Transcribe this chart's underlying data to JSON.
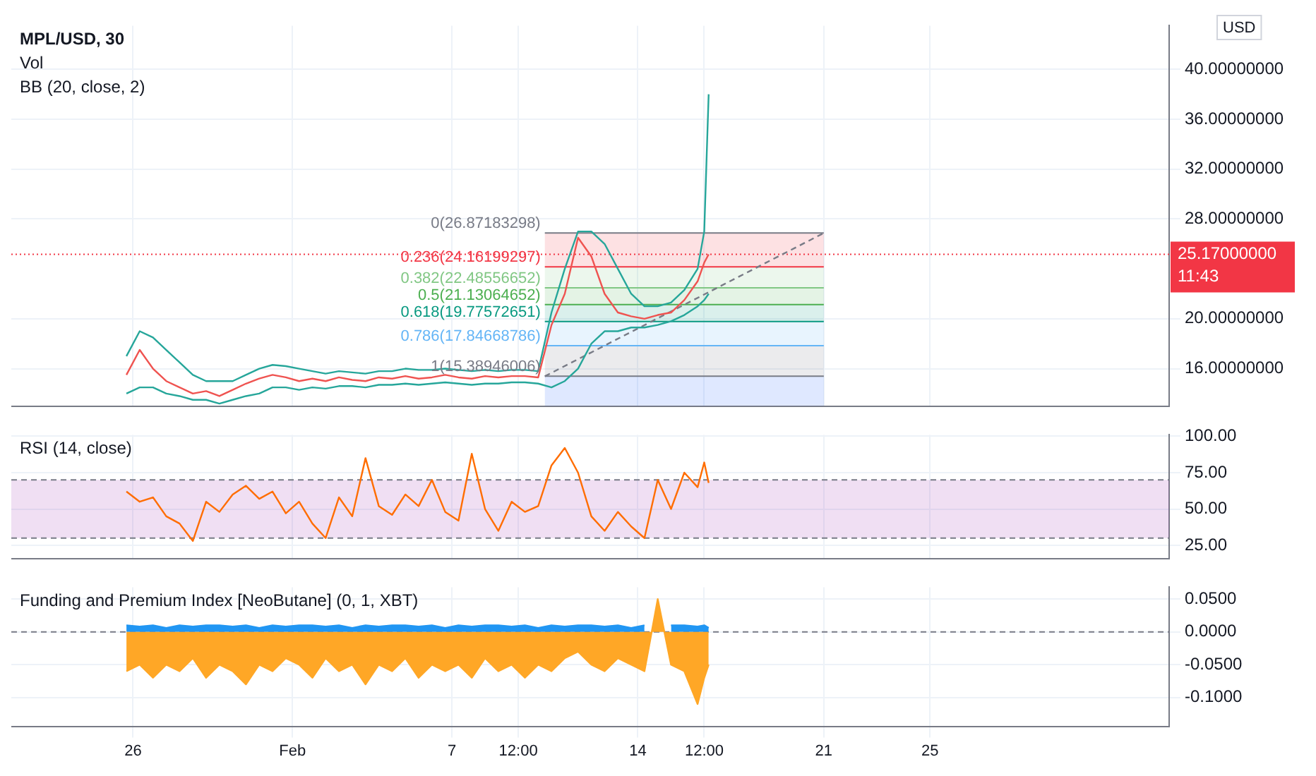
{
  "chart_data": [
    {
      "type": "line",
      "title": "MPL/USD, 30",
      "ylabel": "USD",
      "annotations": [
        "Vol",
        "BB (20, close, 2)"
      ],
      "tick_labels": "y",
      "grid": true,
      "marker": "none",
      "x": [
        "--01-25T18:00",
        "--01-26T06:00",
        "--01-26T18:00",
        "--01-27T06:00",
        "--01-27T18:00",
        "--01-28T06:00",
        "--01-28T18:00",
        "--01-29T06:00",
        "--01-29T18:00",
        "--01-30T06:00",
        "--01-30T18:00",
        "--01-31T06:00",
        "--01-31T18:00",
        "--02-01T06:00",
        "--02-01T18:00",
        "--02-02T06:00",
        "--02-02T18:00",
        "--02-03T06:00",
        "--02-03T18:00",
        "--02-04T06:00",
        "--02-04T18:00",
        "--02-05T06:00",
        "--02-05T18:00",
        "--02-06T06:00",
        "--02-06T18:00",
        "--02-07T06:00",
        "--02-07T18:00",
        "--02-08T06:00",
        "--02-08T18:00",
        "--02-09T06:00",
        "--02-09T18:00",
        "--02-10T06:00",
        "--02-10T18:00",
        "--02-11T06:00",
        "--02-11T18:00",
        "--02-12T06:00",
        "--02-12T18:00",
        "--02-13T06:00",
        "--02-13T18:00",
        "--02-14T06:00",
        "--02-14T18:00",
        "--02-15T06:00",
        "--02-15T18:00",
        "--02-16T06:00",
        "--02-16T12:00",
        "--02-16T16:00"
      ],
      "series": [
        {
          "color": "#ef5350",
          "values": [
            15.5,
            17.5,
            16.0,
            15.0,
            14.5,
            14.0,
            14.2,
            13.8,
            14.3,
            14.8,
            15.2,
            15.5,
            15.3,
            15.0,
            15.2,
            15.0,
            15.3,
            15.1,
            15.0,
            15.3,
            15.2,
            15.4,
            15.2,
            15.3,
            15.5,
            15.3,
            15.2,
            15.4,
            15.3,
            15.4,
            15.4,
            15.3,
            19.5,
            22.0,
            26.5,
            25.0,
            22.0,
            20.5,
            20.2,
            20.0,
            20.3,
            20.5,
            21.5,
            23.0,
            24.5,
            25.17
          ]
        },
        {
          "color": "#26a69a",
          "values": [
            14.0,
            14.5,
            14.5,
            14.0,
            13.8,
            13.5,
            13.5,
            13.2,
            13.5,
            13.8,
            14.0,
            14.5,
            14.5,
            14.3,
            14.5,
            14.4,
            14.6,
            14.6,
            14.5,
            14.7,
            14.7,
            14.8,
            14.7,
            14.8,
            14.9,
            14.8,
            14.7,
            14.8,
            14.8,
            14.9,
            14.9,
            14.8,
            14.5,
            15.0,
            16.0,
            18.0,
            19.0,
            19.0,
            19.3,
            19.3,
            19.5,
            19.8,
            20.3,
            21.0,
            21.5,
            22.0
          ]
        },
        {
          "color": "#26a69a",
          "values": [
            17.0,
            19.0,
            18.5,
            17.5,
            16.5,
            15.5,
            15.0,
            15.0,
            15.0,
            15.5,
            16.0,
            16.3,
            16.2,
            16.0,
            15.8,
            15.6,
            15.8,
            15.7,
            15.6,
            15.8,
            15.8,
            16.0,
            15.9,
            15.9,
            16.0,
            15.9,
            15.8,
            15.9,
            15.8,
            15.9,
            15.9,
            15.8,
            20.5,
            24.0,
            27.0,
            27.0,
            26.0,
            24.0,
            22.0,
            21.0,
            21.0,
            21.3,
            22.3,
            24.0,
            27.0,
            38.0
          ]
        },
        {
          "type": "line",
          "color": "#787b86",
          "line_style": "dashed",
          "x": [
            "--02-10T12:00",
            "--02-21"
          ],
          "values": [
            15.39,
            26.87
          ]
        }
      ],
      "ylim": [
        13.0,
        43.5
      ],
      "yticks": [
        {
          "value": 16,
          "label": "16.00000000"
        },
        {
          "value": 20,
          "label": "20.00000000"
        },
        {
          "value": 28,
          "label": "28.00000000"
        },
        {
          "value": 32,
          "label": "32.00000000"
        },
        {
          "value": 36,
          "label": "36.00000000"
        },
        {
          "value": 40,
          "label": "40.00000000"
        }
      ],
      "xlim": [
        "--01-21T10:00",
        "--03-06"
      ],
      "xticks": [
        {
          "value": "--01-26",
          "label": "26"
        },
        {
          "value": "--02-01",
          "label": "Feb"
        },
        {
          "value": "--02-07",
          "label": "7"
        },
        {
          "value": "--02-09T12:00",
          "label": "12:00"
        },
        {
          "value": "--02-14",
          "label": "14"
        },
        {
          "value": "--02-16T12:00",
          "label": "12:00"
        },
        {
          "value": "--02-21",
          "label": "21"
        },
        {
          "value": "--02-25",
          "label": "25"
        }
      ],
      "ref_lines": [
        {
          "axis": "y",
          "value": 26.87183298,
          "label": "0(26.87183298)",
          "color": "#787b86"
        },
        {
          "axis": "y",
          "value": 24.16199297,
          "label": "0.236(24.16199297)",
          "color": "#f23645"
        },
        {
          "axis": "y",
          "value": 22.48556652,
          "label": "0.382(22.48556652)",
          "color": "#81c784"
        },
        {
          "axis": "y",
          "value": 21.13064652,
          "label": "0.5(21.13064652)",
          "color": "#4caf50"
        },
        {
          "axis": "y",
          "value": 19.77572651,
          "label": "0.618(19.77572651)",
          "color": "#089981"
        },
        {
          "axis": "y",
          "value": 17.84668786,
          "label": "0.786(17.84668786)",
          "color": "#64b5f6"
        },
        {
          "axis": "y",
          "value": 15.38946006,
          "label": "1(15.38946006)",
          "color": "#787b86"
        },
        {
          "axis": "y",
          "value": 25.17,
          "label": "25.17000000\n11:43",
          "color": "#f23645",
          "line_style": "dotted"
        }
      ],
      "bands": [
        {
          "axis": "y",
          "from": 24.16199297,
          "to": 26.87183298,
          "color": "#f23645"
        },
        {
          "axis": "y",
          "from": 22.48556652,
          "to": 24.16199297,
          "color": "#81c784"
        },
        {
          "axis": "y",
          "from": 21.13064652,
          "to": 22.48556652,
          "color": "#4caf50"
        },
        {
          "axis": "y",
          "from": 19.77572651,
          "to": 21.13064652,
          "color": "#089981"
        },
        {
          "axis": "y",
          "from": 17.84668786,
          "to": 19.77572651,
          "color": "#64b5f6"
        },
        {
          "axis": "y",
          "from": 15.38946006,
          "to": 17.84668786,
          "color": "#787b86"
        },
        {
          "axis": "y",
          "from": 13.0,
          "to": 15.38946006,
          "color": "#2962ff"
        }
      ]
    },
    {
      "type": "line",
      "annotations": [
        "RSI (14, close)"
      ],
      "tick_labels": "y",
      "grid": true,
      "marker": "none",
      "x": [
        "--01-25T18:00",
        "--01-26T06:00",
        "--01-26T18:00",
        "--01-27T06:00",
        "--01-27T18:00",
        "--01-28T06:00",
        "--01-28T18:00",
        "--01-29T06:00",
        "--01-29T18:00",
        "--01-30T06:00",
        "--01-30T18:00",
        "--01-31T06:00",
        "--01-31T18:00",
        "--02-01T06:00",
        "--02-01T18:00",
        "--02-02T06:00",
        "--02-02T18:00",
        "--02-03T06:00",
        "--02-03T18:00",
        "--02-04T06:00",
        "--02-04T18:00",
        "--02-05T06:00",
        "--02-05T18:00",
        "--02-06T06:00",
        "--02-06T18:00",
        "--02-07T06:00",
        "--02-07T18:00",
        "--02-08T06:00",
        "--02-08T18:00",
        "--02-09T06:00",
        "--02-09T18:00",
        "--02-10T06:00",
        "--02-10T18:00",
        "--02-11T06:00",
        "--02-11T18:00",
        "--02-12T06:00",
        "--02-12T18:00",
        "--02-13T06:00",
        "--02-13T18:00",
        "--02-14T06:00",
        "--02-14T18:00",
        "--02-15T06:00",
        "--02-15T18:00",
        "--02-16T06:00",
        "--02-16T12:00",
        "--02-16T16:00"
      ],
      "series": [
        {
          "color": "#ff6d00",
          "values": [
            62,
            55,
            58,
            45,
            40,
            28,
            55,
            48,
            60,
            66,
            57,
            62,
            47,
            55,
            40,
            30,
            58,
            45,
            85,
            52,
            46,
            60,
            52,
            70,
            48,
            42,
            88,
            50,
            35,
            55,
            48,
            52,
            80,
            92,
            75,
            45,
            35,
            48,
            38,
            30,
            70,
            50,
            75,
            65,
            82,
            68
          ]
        }
      ],
      "ylim": [
        16,
        101
      ],
      "yticks": [
        {
          "value": 25,
          "label": "25.00"
        },
        {
          "value": 50,
          "label": "50.00"
        },
        {
          "value": 75,
          "label": "75.00"
        },
        {
          "value": 100,
          "label": "100.00"
        }
      ],
      "xlim": [
        "--01-21T10:00",
        "--03-06"
      ],
      "xticks": [
        {
          "value": "--01-26",
          "label": "26"
        },
        {
          "value": "--02-01",
          "label": "Feb"
        },
        {
          "value": "--02-07",
          "label": "7"
        },
        {
          "value": "--02-09T12:00",
          "label": "12:00"
        },
        {
          "value": "--02-14",
          "label": "14"
        },
        {
          "value": "--02-16T12:00",
          "label": "12:00"
        },
        {
          "value": "--02-21",
          "label": "21"
        },
        {
          "value": "--02-25",
          "label": "25"
        }
      ],
      "ref_lines": [
        {
          "axis": "y",
          "value": 70,
          "color": "#787b86",
          "line_style": "dashed"
        },
        {
          "axis": "y",
          "value": 30,
          "color": "#787b86",
          "line_style": "dashed"
        }
      ],
      "bands": [
        {
          "axis": "y",
          "from": 30,
          "to": 70,
          "color": "#9c27b0"
        }
      ]
    },
    {
      "type": "area",
      "annotations": [
        "Funding and Premium Index [NeoButane] (0, 1, XBT)"
      ],
      "grid": true,
      "marker": "none",
      "x": [
        "--01-25T18:00",
        "--01-26T06:00",
        "--01-26T18:00",
        "--01-27T06:00",
        "--01-27T18:00",
        "--01-28T06:00",
        "--01-28T18:00",
        "--01-29T06:00",
        "--01-29T18:00",
        "--01-30T06:00",
        "--01-30T18:00",
        "--01-31T06:00",
        "--01-31T18:00",
        "--02-01T06:00",
        "--02-01T18:00",
        "--02-02T06:00",
        "--02-02T18:00",
        "--02-03T06:00",
        "--02-03T18:00",
        "--02-04T06:00",
        "--02-04T18:00",
        "--02-05T06:00",
        "--02-05T18:00",
        "--02-06T06:00",
        "--02-06T18:00",
        "--02-07T06:00",
        "--02-07T18:00",
        "--02-08T06:00",
        "--02-08T18:00",
        "--02-09T06:00",
        "--02-09T18:00",
        "--02-10T06:00",
        "--02-10T18:00",
        "--02-11T06:00",
        "--02-11T18:00",
        "--02-12T06:00",
        "--02-12T18:00",
        "--02-13T06:00",
        "--02-13T18:00",
        "--02-14T06:00",
        "--02-14T18:00",
        "--02-15T06:00",
        "--02-15T18:00",
        "--02-16T06:00",
        "--02-16T12:00",
        "--02-16T16:00"
      ],
      "series": [
        {
          "color": "#ffa726",
          "values": [
            -0.06,
            -0.05,
            -0.07,
            -0.05,
            -0.06,
            -0.04,
            -0.07,
            -0.05,
            -0.06,
            -0.08,
            -0.05,
            -0.06,
            -0.04,
            -0.05,
            -0.07,
            -0.04,
            -0.06,
            -0.05,
            -0.08,
            -0.05,
            -0.06,
            -0.04,
            -0.07,
            -0.05,
            -0.06,
            -0.05,
            -0.07,
            -0.04,
            -0.06,
            -0.05,
            -0.07,
            -0.05,
            -0.06,
            -0.04,
            -0.03,
            -0.05,
            -0.06,
            -0.04,
            -0.05,
            -0.06,
            0.05,
            -0.05,
            -0.06,
            -0.11,
            -0.07,
            -0.05
          ]
        },
        {
          "color": "#2196f3",
          "values": [
            0.01,
            0.008,
            0.01,
            0.006,
            0.01,
            0.008,
            0.01,
            0.01,
            0.008,
            0.01,
            0.006,
            0.01,
            0.008,
            0.01,
            0.01,
            0.008,
            0.01,
            0.006,
            0.01,
            0.008,
            0.01,
            0.01,
            0.008,
            0.01,
            0.006,
            0.01,
            0.008,
            0.01,
            0.01,
            0.008,
            0.01,
            0.006,
            0.01,
            0.008,
            0.01,
            0.01,
            0.008,
            0.01,
            0.006,
            0.01,
            null,
            0.01,
            0.01,
            0.008,
            0.01,
            0.006
          ]
        }
      ],
      "ylim": [
        -0.144,
        0.068
      ],
      "yticks": [
        {
          "value": -0.1,
          "label": "-0.1000"
        },
        {
          "value": -0.05,
          "label": "-0.0500"
        },
        {
          "value": 0,
          "label": "0.0000"
        },
        {
          "value": 0.05,
          "label": "0.0500"
        }
      ],
      "xlim": [
        "--01-21T10:00",
        "--03-06"
      ],
      "xticks": [
        {
          "value": "--01-26",
          "label": "26"
        },
        {
          "value": "--02-01",
          "label": "Feb"
        },
        {
          "value": "--02-07",
          "label": "7"
        },
        {
          "value": "--02-09T12:00",
          "label": "12:00"
        },
        {
          "value": "--02-14",
          "label": "14"
        },
        {
          "value": "--02-16T12:00",
          "label": "12:00"
        },
        {
          "value": "--02-21",
          "label": "21"
        },
        {
          "value": "--02-25",
          "label": "25"
        }
      ],
      "ref_lines": [
        {
          "axis": "y",
          "value": 0,
          "color": "#787b86",
          "line_style": "dashed"
        }
      ]
    }
  ]
}
